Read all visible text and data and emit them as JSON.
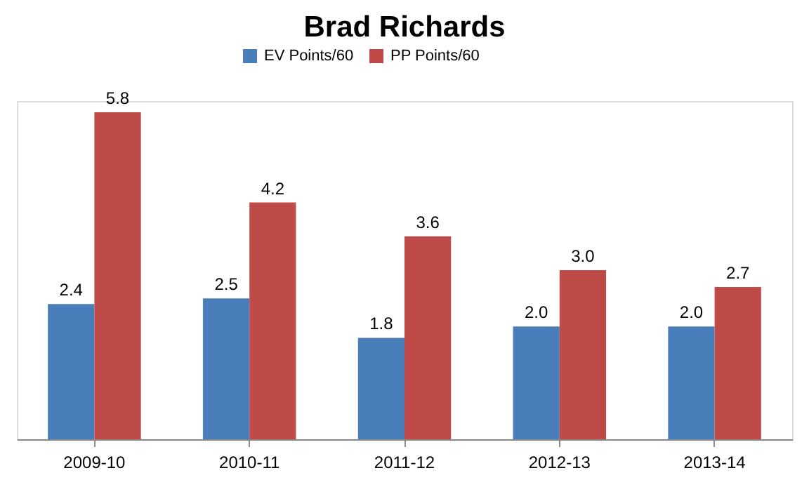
{
  "chart_data": {
    "type": "bar",
    "title": "Brad Richards",
    "categories": [
      "2009-10",
      "2010-11",
      "2011-12",
      "2012-13",
      "2013-14"
    ],
    "series": [
      {
        "name": "EV Points/60",
        "color": "#4a7ebb",
        "values": [
          2.4,
          2.5,
          1.8,
          2.0,
          2.0
        ],
        "value_labels": [
          "2.4",
          "2.5",
          "1.8",
          "2.0",
          "2.0"
        ]
      },
      {
        "name": "PP Points/60",
        "color": "#be4b48",
        "values": [
          5.8,
          4.2,
          3.6,
          3.0,
          2.7
        ],
        "value_labels": [
          "5.8",
          "4.2",
          "3.6",
          "3.0",
          "2.7"
        ]
      }
    ],
    "legend": "top",
    "grid": false
  }
}
